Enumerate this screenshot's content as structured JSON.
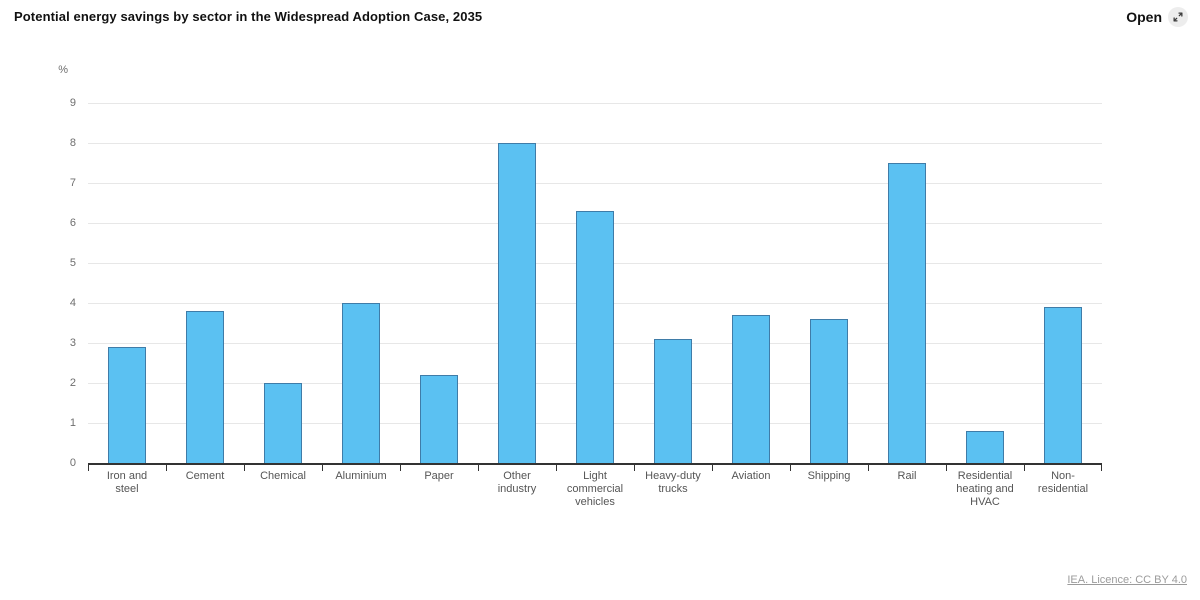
{
  "header": {
    "title": "Potential energy savings by sector in the Widespread Adoption Case, 2035",
    "open_label": "Open",
    "open_icon": "expand-arrows-icon"
  },
  "footer": {
    "licence_label": "IEA. Licence: CC BY 4.0"
  },
  "colors": {
    "bar_fill": "#5BC1F2",
    "bar_border": "#3F7CA8",
    "gridline": "#E7E7E7",
    "axis_line": "#333333",
    "axis_text": "#6E6E6E",
    "category_text": "#555555",
    "title_text": "#111111",
    "licence_text": "#9B9B9B",
    "open_icon_bg": "#EDEDED"
  },
  "chart_data": {
    "type": "bar",
    "title": "Potential energy savings by sector in the Widespread Adoption Case, 2035",
    "xlabel": "",
    "ylabel": "%",
    "categories": [
      "Iron and steel",
      "Cement",
      "Chemical",
      "Aluminium",
      "Paper",
      "Other industry",
      "Light commercial vehicles",
      "Heavy-duty trucks",
      "Aviation",
      "Shipping",
      "Rail",
      "Residential heating and HVAC",
      "Non-residential"
    ],
    "values": [
      2.9,
      3.8,
      2.0,
      4.0,
      2.2,
      8.0,
      6.3,
      3.1,
      3.7,
      3.6,
      7.5,
      0.8,
      3.9
    ],
    "ylim": [
      0,
      9
    ],
    "yticks": [
      0,
      1,
      2,
      3,
      4,
      5,
      6,
      7,
      8,
      9
    ],
    "grid": "horizontal",
    "legend": "none"
  }
}
